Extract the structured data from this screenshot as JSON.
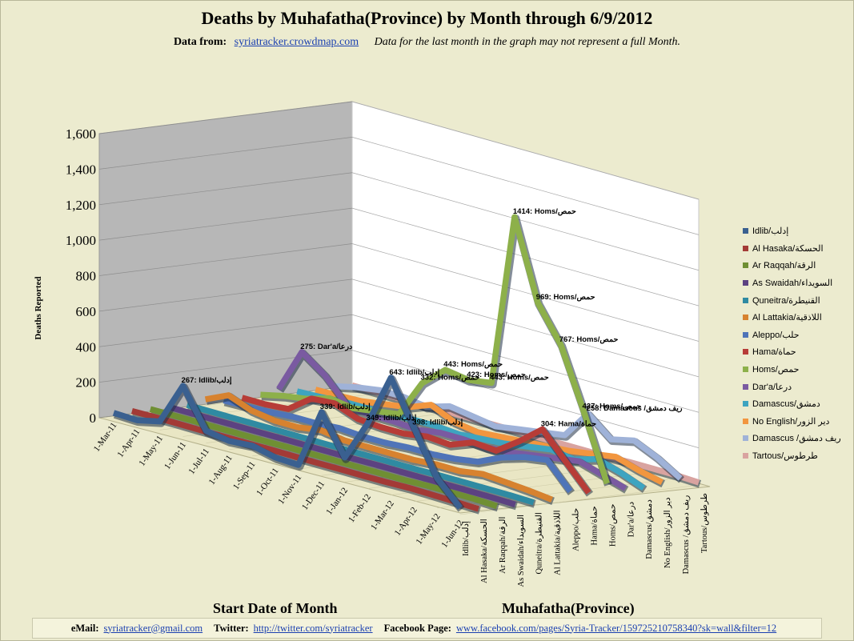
{
  "title": "Deaths by Muhafatha(Province) by Month through 6/9/2012",
  "source": {
    "label": "Data from:",
    "link": "syriatracker.crowdmap.com",
    "note": "Data for the last month  in the graph may not represent  a full Month."
  },
  "footer": {
    "email_label": "eMail:",
    "email": "syriatracker@gmail.com",
    "twitter_label": "Twitter:",
    "twitter": "http://twitter.com/syriatracker",
    "facebook_label": "Facebook  Page:",
    "facebook": "www.facebook.com/pages/Syria-Tracker/159725210758340?sk=wall&filter=12"
  },
  "chart_data": {
    "type": "line",
    "subtype": "3d-line",
    "title": "Deaths by Muhafatha(Province) by Month through 6/9/2012",
    "ylabel": "Deaths Reported",
    "xlabel": "Start Date of Month",
    "zlabel": "Muhafatha(Province)",
    "ylim": [
      0,
      1600
    ],
    "yticks": [
      "0",
      "200",
      "400",
      "600",
      "800",
      "1,000",
      "1,200",
      "1,400",
      "1,600"
    ],
    "categories": [
      "1-Mar-11",
      "1-Apr-11",
      "1-May-11",
      "1-Jun-11",
      "1-Jul-11",
      "1-Aug-11",
      "1-Sep-11",
      "1-Oct-11",
      "1-Nov-11",
      "1-Dec-11",
      "1-Jan-12",
      "1-Feb-12",
      "1-Mar-12",
      "1-Apr-12",
      "1-May-12",
      "1-Jun-12"
    ],
    "legend_position": "right",
    "series": [
      {
        "name": "Idlib/إدلب",
        "axis_label": "Idlib/إدلب",
        "color": "#3a6090",
        "values": [
          5,
          0,
          30,
          267,
          50,
          30,
          40,
          10,
          5,
          339,
          120,
          349,
          643,
          398,
          150,
          20
        ]
      },
      {
        "name": "Al Hasaka/الحسكة",
        "axis_label": "Al Hasaka/الحسكة",
        "color": "#a33a36",
        "values": [
          3,
          5,
          5,
          4,
          5,
          5,
          6,
          5,
          5,
          6,
          5,
          6,
          10,
          8,
          5,
          2
        ]
      },
      {
        "name": "Ar Raqqah/الرقة",
        "axis_label": "Ar Raqqah/الرقة",
        "color": "#6f8f33",
        "values": [
          2,
          3,
          3,
          3,
          3,
          3,
          5,
          5,
          5,
          5,
          5,
          5,
          10,
          10,
          10,
          5
        ]
      },
      {
        "name": "As Swaidah/السويداء",
        "axis_label": "As Swaidah/السويداء",
        "color": "#5c4281",
        "values": [
          2,
          2,
          2,
          3,
          3,
          3,
          3,
          3,
          3,
          5,
          5,
          5,
          5,
          5,
          5,
          2
        ]
      },
      {
        "name": "Quneitra/القنيطرة",
        "axis_label": "Quneitra/القنيطرة",
        "color": "#2f8aa2",
        "values": [
          1,
          1,
          1,
          1,
          1,
          1,
          1,
          1,
          2,
          2,
          2,
          5,
          5,
          5,
          5,
          2
        ]
      },
      {
        "name": "Al Lattakia/اللاذقية",
        "axis_label": "Al Lattakia/اللاذقية",
        "color": "#d7822f",
        "values": [
          20,
          80,
          30,
          10,
          10,
          30,
          10,
          10,
          10,
          10,
          20,
          20,
          40,
          30,
          20,
          5
        ]
      },
      {
        "name": "Aleppo/حلب",
        "axis_label": "Aleppo/حلب",
        "color": "#4f74b8",
        "values": [
          2,
          5,
          10,
          20,
          20,
          30,
          20,
          20,
          30,
          30,
          40,
          60,
          120,
          160,
          180,
          40
        ]
      },
      {
        "name": "Hama/حماة",
        "axis_label": "Hama/حماة",
        "color": "#b73c37",
        "values": [
          5,
          5,
          15,
          110,
          120,
          70,
          60,
          60,
          80,
          70,
          120,
          110,
          200,
          304,
          160,
          20
        ]
      },
      {
        "name": "Homs/حمص",
        "axis_label": "Homs/حمص",
        "color": "#8db04a",
        "values": [
          10,
          40,
          60,
          100,
          80,
          100,
          120,
          332,
          443,
          423,
          443,
          1414,
          969,
          767,
          427,
          60
        ]
      },
      {
        "name": "Dar'a/درعا",
        "axis_label": "Dar'a/درعا",
        "color": "#7a5aa1",
        "values": [
          30,
          275,
          180,
          40,
          30,
          30,
          20,
          40,
          40,
          30,
          40,
          60,
          80,
          100,
          60,
          20
        ]
      },
      {
        "name": "Damascus/دمشق",
        "axis_label": "Damascus/دمشق",
        "color": "#3ea4c0",
        "values": [
          5,
          10,
          20,
          20,
          20,
          30,
          30,
          20,
          30,
          40,
          60,
          80,
          60,
          100,
          60,
          10
        ]
      },
      {
        "name": "No English/دير الزور",
        "axis_label": "No English/دير الزور",
        "color": "#f2963f",
        "values": [
          2,
          5,
          10,
          30,
          50,
          100,
          40,
          20,
          30,
          40,
          50,
          60,
          80,
          100,
          60,
          30
        ]
      },
      {
        "name": "Damascus /ريف دمشق",
        "axis_label": "Damascus /ريف دمشق",
        "color": "#9fb2d8",
        "values": [
          10,
          40,
          60,
          60,
          40,
          80,
          60,
          40,
          60,
          80,
          100,
          258,
          150,
          180,
          120,
          40
        ]
      },
      {
        "name": "Tartous/طرطوس",
        "axis_label": "Tartous/طرطوس",
        "color": "#d9a3a0",
        "values": [
          2,
          3,
          3,
          3,
          5,
          5,
          5,
          5,
          5,
          5,
          5,
          5,
          10,
          10,
          10,
          5
        ]
      }
    ],
    "annotations": [
      {
        "series": "Homs/حمص",
        "category": "1-Feb-12",
        "text": "1414: Homs/حمص"
      },
      {
        "series": "Homs/حمص",
        "category": "1-Mar-12",
        "text": "969: Homs/حمص"
      },
      {
        "series": "Homs/حمص",
        "category": "1-Apr-12",
        "text": "767: Homs/حمص"
      },
      {
        "series": "Homs/حمص",
        "category": "1-May-12",
        "text": "427: Homs/حمص"
      },
      {
        "series": "Homs/حمص",
        "category": "1-Nov-11",
        "text": "443: Homs/حمص"
      },
      {
        "series": "Homs/حمص",
        "category": "1-Dec-11",
        "text": "423: Homs/حمص"
      },
      {
        "series": "Homs/حمص",
        "category": "1-Jan-12",
        "text": "443: Homs/حمص"
      },
      {
        "series": "Homs/حمص",
        "category": "1-Oct-11",
        "text": "332: Homs/حمص"
      },
      {
        "series": "Dar'a/درعا",
        "category": "1-Apr-11",
        "text": "275: Dar'a/درعا"
      },
      {
        "series": "Damascus /ريف دمشق",
        "category": "1-Feb-12",
        "text": "258: Damascus /ريف دمشق"
      },
      {
        "series": "Hama/حماة",
        "category": "1-Apr-12",
        "text": "304: Hama/حماة"
      },
      {
        "series": "Idlib/إدلب",
        "category": "1-Jun-11",
        "text": "267: Idlib/إدلب"
      },
      {
        "series": "Idlib/إدلب",
        "category": "1-Dec-11",
        "text": "339: Idlib/إدلب"
      },
      {
        "series": "Idlib/إدلب",
        "category": "1-Feb-12",
        "text": "349: Idlib/إدلب"
      },
      {
        "series": "Idlib/إدلب",
        "category": "1-Mar-12",
        "text": "643: Idlib/إدلب"
      },
      {
        "series": "Idlib/إدلب",
        "category": "1-Apr-12",
        "text": "398: Idlib/إدلب"
      }
    ]
  }
}
